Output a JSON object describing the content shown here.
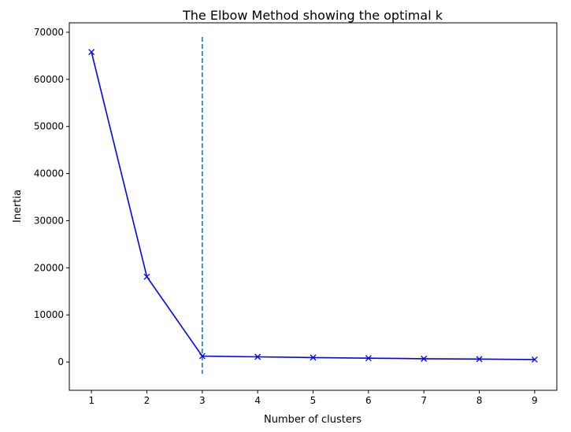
{
  "chart_data": {
    "type": "line",
    "title": "The Elbow Method showing the optimal k",
    "xlabel": "Number of clusters",
    "ylabel": "Inertia",
    "x": [
      1,
      2,
      3,
      4,
      5,
      6,
      7,
      8,
      9
    ],
    "series": [
      {
        "values": [
          65800,
          18100,
          1250,
          1100,
          950,
          820,
          700,
          620,
          520
        ],
        "color": "#0000ff",
        "marker": "x"
      }
    ],
    "xlim": [
      0.6,
      9.4
    ],
    "ylim": [
      -6000,
      72000
    ],
    "xticks": [
      1,
      2,
      3,
      4,
      5,
      6,
      7,
      8,
      9
    ],
    "yticks": [
      0,
      10000,
      20000,
      30000,
      40000,
      50000,
      60000,
      70000
    ],
    "optimal_k_line": {
      "x": 3,
      "y_range": [
        -2500,
        69000
      ],
      "style": "dashed",
      "color": "#1f77b4"
    },
    "grid": false,
    "legend": false
  }
}
